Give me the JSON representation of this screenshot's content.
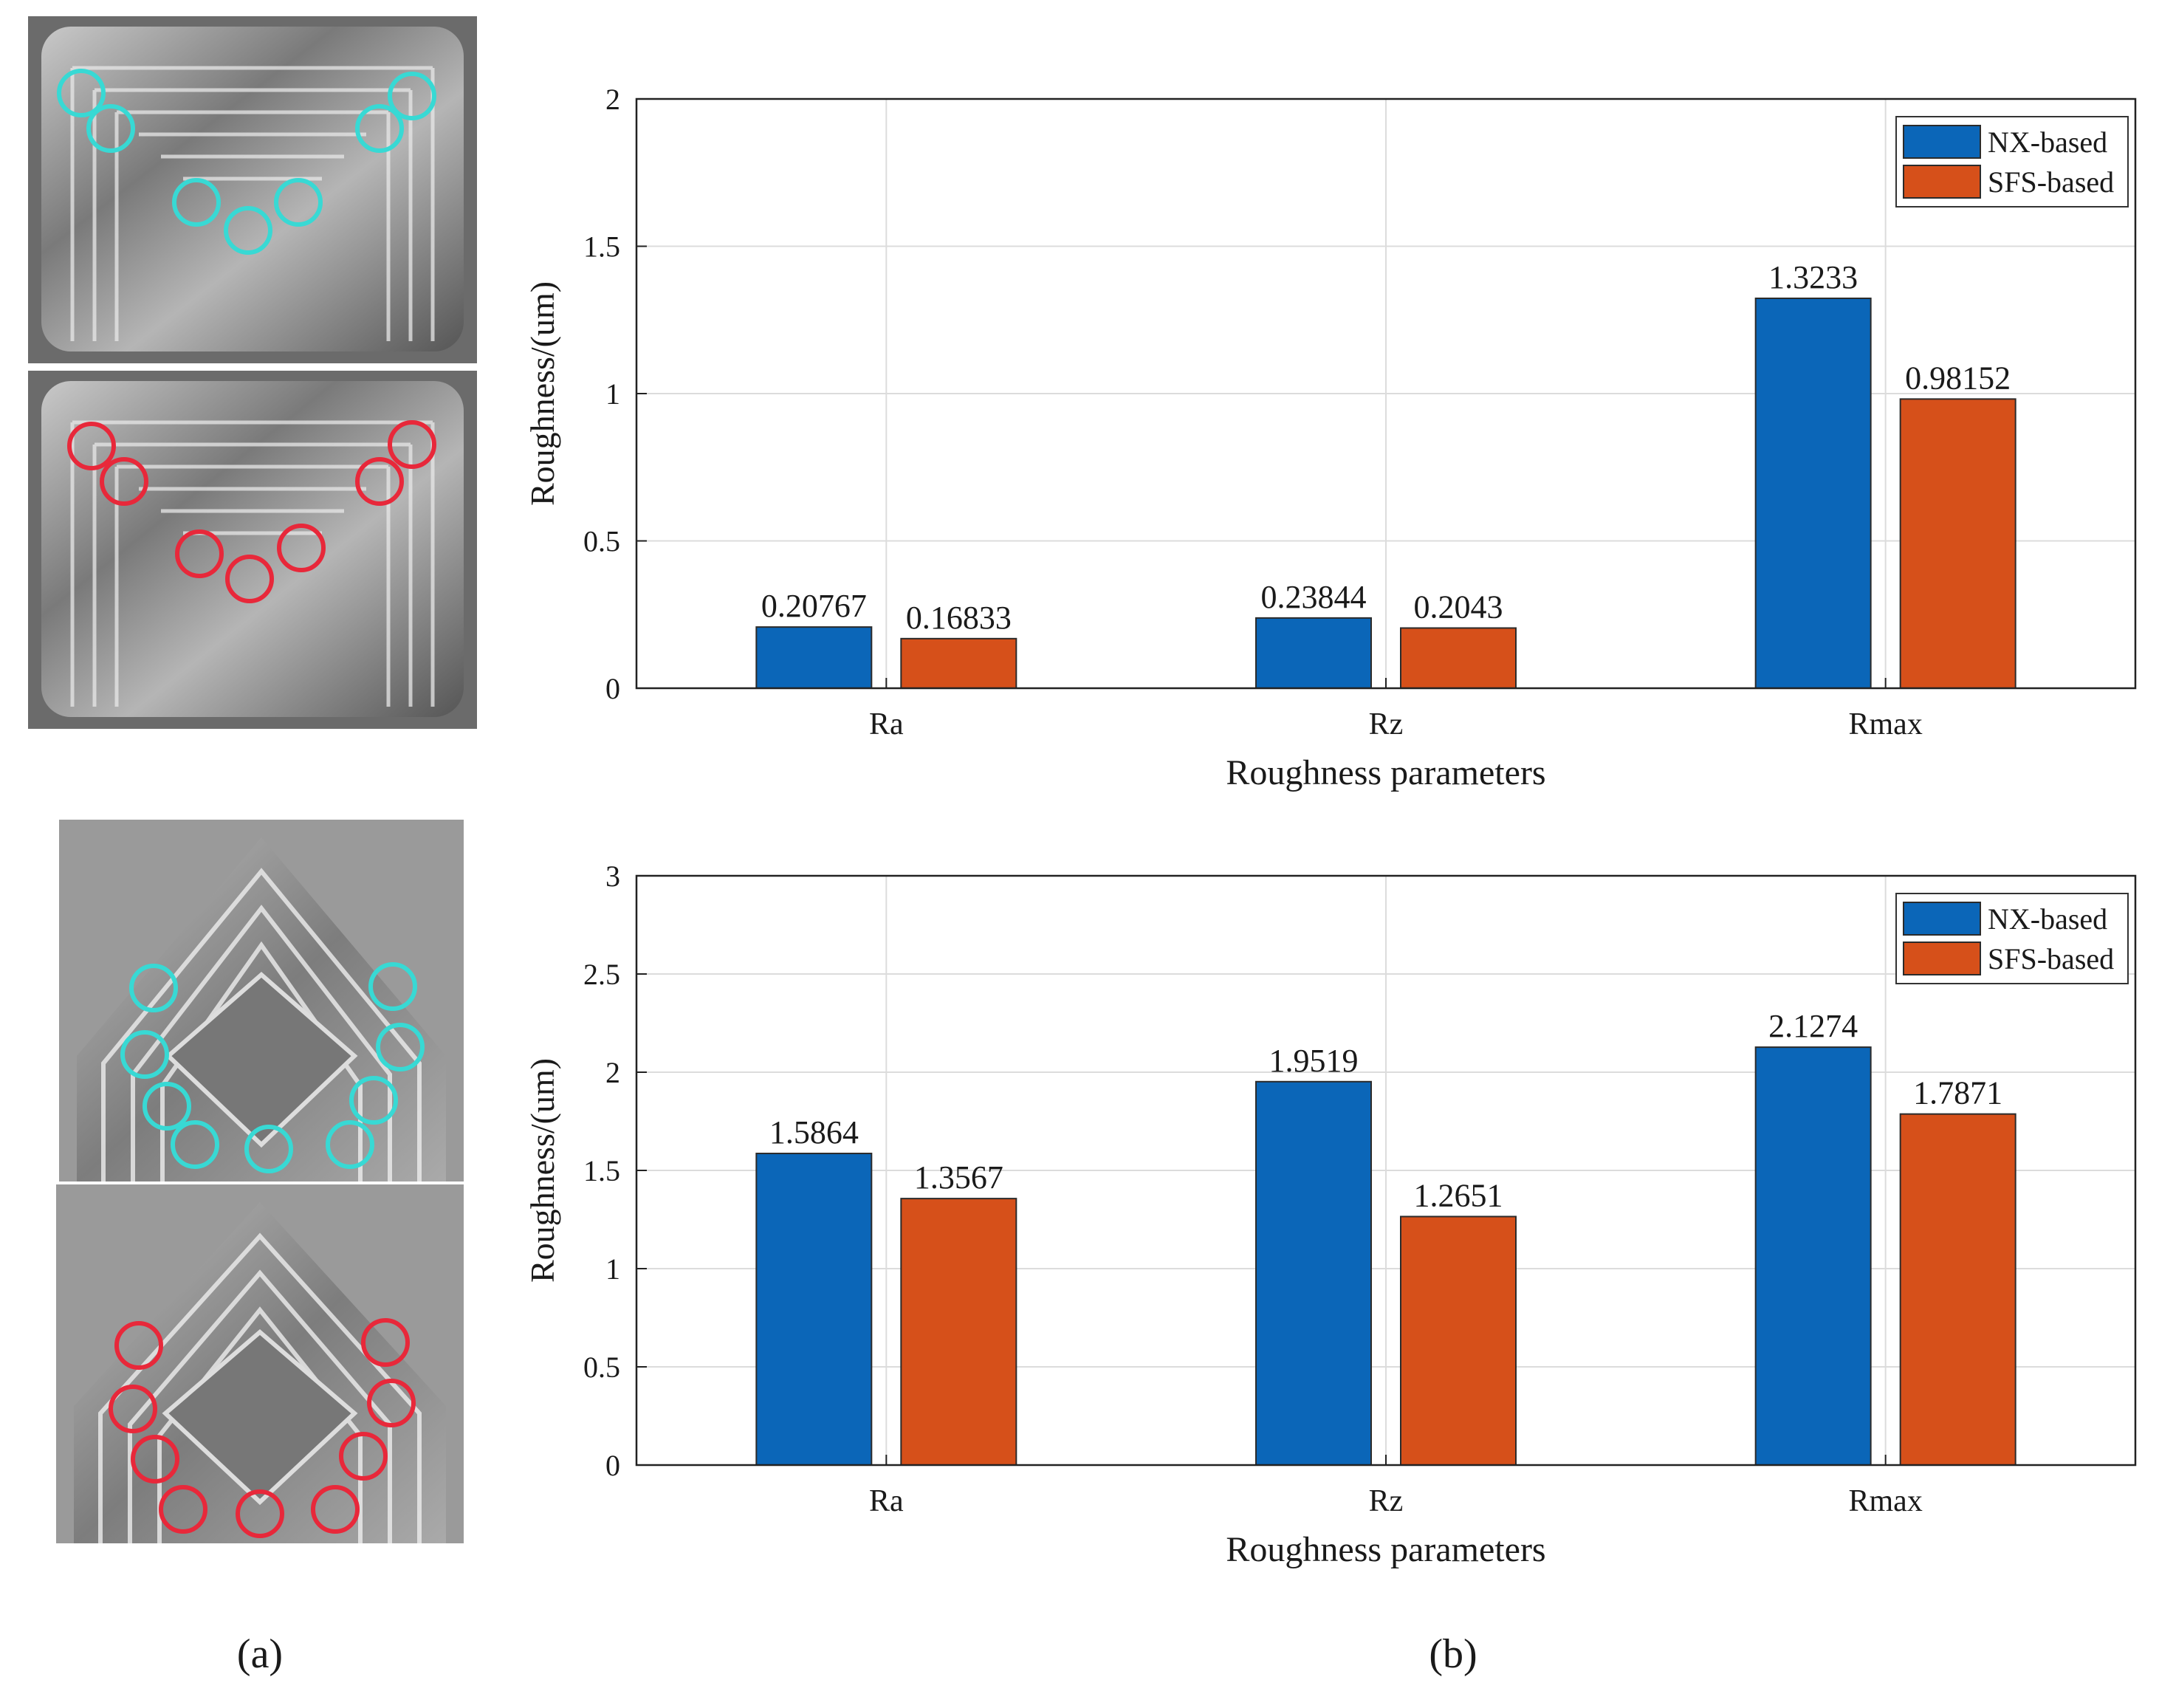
{
  "labels": {
    "a": "(a)",
    "b": "(b)"
  },
  "colors": {
    "nx": "#0b66b8",
    "sfs": "#d6501a",
    "cyan_mark": "#38d9d4",
    "red_mark": "#e8283a"
  },
  "photos": [
    {
      "id": "rect-nx",
      "shape": "rounded-rectangle",
      "marker": "cyan"
    },
    {
      "id": "rect-sfs",
      "shape": "rounded-rectangle",
      "marker": "red"
    },
    {
      "id": "pent-nx",
      "shape": "pentagon",
      "marker": "cyan"
    },
    {
      "id": "pent-sfs",
      "shape": "pentagon",
      "marker": "red"
    }
  ],
  "chart_data": [
    {
      "type": "bar",
      "categories": [
        "Ra",
        "Rz",
        "Rmax"
      ],
      "series": [
        {
          "name": "NX-based",
          "values": [
            0.20767,
            0.23844,
            1.3233
          ],
          "labels": [
            "0.20767",
            "0.23844",
            "1.3233"
          ]
        },
        {
          "name": "SFS-based",
          "values": [
            0.16833,
            0.2043,
            0.98152
          ],
          "labels": [
            "0.16833",
            "0.2043",
            "0.98152"
          ]
        }
      ],
      "xlabel": "Roughness parameters",
      "ylabel": "Roughness/(um)",
      "ylim": [
        0,
        2
      ],
      "yticks": [
        0,
        0.5,
        1,
        1.5,
        2
      ],
      "ytick_labels": [
        "0",
        "0.5",
        "1",
        "1.5",
        "2"
      ],
      "grid": true,
      "legend": "top-right"
    },
    {
      "type": "bar",
      "categories": [
        "Ra",
        "Rz",
        "Rmax"
      ],
      "series": [
        {
          "name": "NX-based",
          "values": [
            1.5864,
            1.9519,
            2.1274
          ],
          "labels": [
            "1.5864",
            "1.9519",
            "2.1274"
          ]
        },
        {
          "name": "SFS-based",
          "values": [
            1.3567,
            1.2651,
            1.7871
          ],
          "labels": [
            "1.3567",
            "1.2651",
            "1.7871"
          ]
        }
      ],
      "xlabel": "Roughness parameters",
      "ylabel": "Roughness/(um)",
      "ylim": [
        0,
        3
      ],
      "yticks": [
        0,
        0.5,
        1,
        1.5,
        2,
        2.5,
        3
      ],
      "ytick_labels": [
        "0",
        "0.5",
        "1",
        "1.5",
        "2",
        "2.5",
        "3"
      ],
      "grid": true,
      "legend": "top-right"
    }
  ]
}
